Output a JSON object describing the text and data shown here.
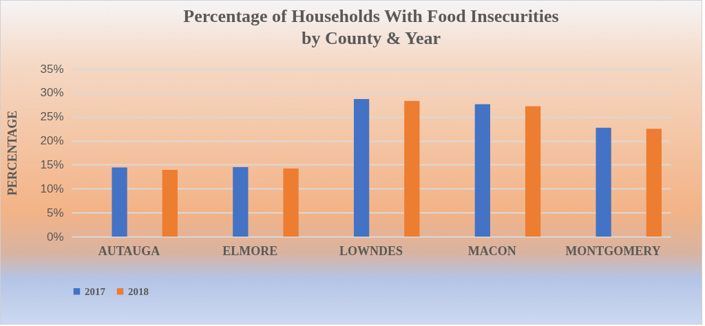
{
  "chart_data": {
    "type": "bar",
    "title": "Percentage of Households With Food Insecurities\nby County & Year",
    "ylabel": "PERCENTAGE",
    "categories": [
      "AUTAUGA",
      "ELMORE",
      "LOWNDES",
      "MACON",
      "MONTGOMERY"
    ],
    "series": [
      {
        "name": "2017",
        "color": "#4472c4",
        "values": [
          14.4,
          14.5,
          28.7,
          27.6,
          22.7
        ]
      },
      {
        "name": "2018",
        "color": "#ed7d31",
        "values": [
          13.9,
          14.2,
          28.3,
          27.2,
          22.5
        ]
      }
    ],
    "ylim": [
      0,
      35
    ],
    "yticks": [
      {
        "value": 0,
        "label": "0%"
      },
      {
        "value": 5,
        "label": "5%"
      },
      {
        "value": 10,
        "label": "10%"
      },
      {
        "value": 15,
        "label": "15%"
      },
      {
        "value": 20,
        "label": "20%"
      },
      {
        "value": 25,
        "label": "25%"
      },
      {
        "value": 30,
        "label": "30%"
      },
      {
        "value": 35,
        "label": "35%"
      }
    ],
    "grid": "y",
    "legend": "bottom"
  }
}
